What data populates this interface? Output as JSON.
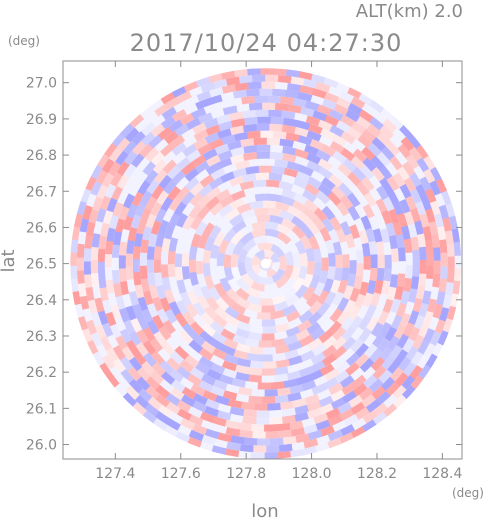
{
  "chart_data": {
    "type": "heatmap",
    "title": "2017/10/24 04:27:30",
    "subtitle": "ALT(km) 2.0",
    "xlabel": "lon",
    "ylabel": "lat",
    "x_unit": "(deg)",
    "y_unit": "(deg)",
    "xlim": [
      127.24,
      128.46
    ],
    "ylim": [
      25.96,
      27.06
    ],
    "x_ticks": [
      "127.4",
      "127.6",
      "127.8",
      "128.0",
      "128.2",
      "128.4"
    ],
    "y_ticks": [
      "26.0",
      "26.1",
      "26.2",
      "26.3",
      "26.4",
      "26.5",
      "26.6",
      "26.7",
      "26.8",
      "26.9",
      "27.0"
    ],
    "center": {
      "lon": 127.86,
      "lat": 26.5
    },
    "radius_deg_lat": 0.54,
    "grid": false,
    "colors": {
      "positive": "#ff9e9e",
      "negative": "#a6a6ff",
      "neutral": "#ffffff",
      "frame": "#8c8c8c"
    }
  }
}
